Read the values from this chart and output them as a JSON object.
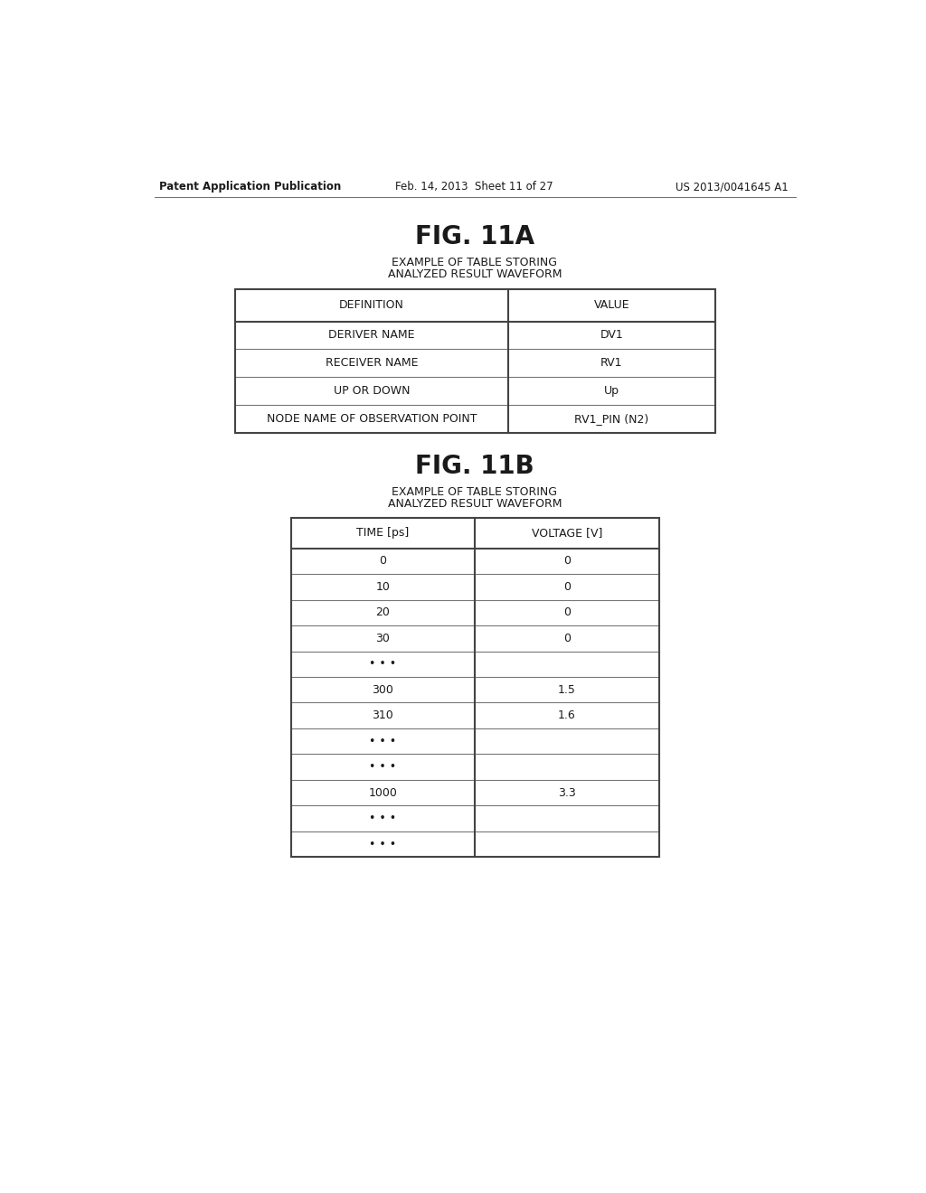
{
  "background_color": "#ffffff",
  "header_left": "Patent Application Publication",
  "header_center": "Feb. 14, 2013  Sheet 11 of 27",
  "header_right": "US 2013/0041645 A1",
  "header_fontsize": 8.5,
  "fig11a_title": "FIG. 11A",
  "fig11a_subtitle_line1": "EXAMPLE OF TABLE STORING",
  "fig11a_subtitle_line2": "ANALYZED RESULT WAVEFORM",
  "fig11a_col1_header": "DEFINITION",
  "fig11a_col2_header": "VALUE",
  "fig11a_rows": [
    [
      "DERIVER NAME",
      "DV1"
    ],
    [
      "RECEIVER NAME",
      "RV1"
    ],
    [
      "UP OR DOWN",
      "Up"
    ],
    [
      "NODE NAME OF OBSERVATION POINT",
      "RV1_PIN (N2)"
    ]
  ],
  "fig11b_title": "FIG. 11B",
  "fig11b_subtitle_line1": "EXAMPLE OF TABLE STORING",
  "fig11b_subtitle_line2": "ANALYZED RESULT WAVEFORM",
  "fig11b_col1_header": "TIME [ps]",
  "fig11b_col2_header": "VOLTAGE [V]",
  "fig11b_rows": [
    [
      "0",
      "0"
    ],
    [
      "10",
      "0"
    ],
    [
      "20",
      "0"
    ],
    [
      "30",
      "0"
    ],
    [
      "• • •",
      ""
    ],
    [
      "300",
      "1.5"
    ],
    [
      "310",
      "1.6"
    ],
    [
      "• • •",
      ""
    ],
    [
      "• • •",
      ""
    ],
    [
      "1000",
      "3.3"
    ],
    [
      "• • •",
      ""
    ],
    [
      "• • •",
      ""
    ]
  ],
  "title_fontsize": 20,
  "subtitle_fontsize": 9,
  "table_fontsize": 9,
  "text_color": "#1a1a1a",
  "border_color": "#444444",
  "inner_line_color": "#777777"
}
